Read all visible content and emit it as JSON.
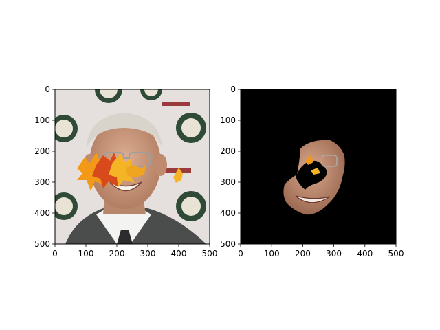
{
  "chart_data": [
    {
      "type": "image",
      "xlim": [
        0,
        500
      ],
      "ylim": [
        500,
        0
      ],
      "xticks": [
        0,
        100,
        200,
        300,
        400,
        500
      ],
      "yticks": [
        0,
        100,
        200,
        300,
        400,
        500
      ],
      "xtick_labels": [
        "0",
        "100",
        "200",
        "300",
        "400",
        "500"
      ],
      "ytick_labels": [
        "0",
        "100",
        "200",
        "300",
        "400",
        "500"
      ],
      "content": "photo-with-leaf-overlay",
      "grid": false
    },
    {
      "type": "image",
      "xlim": [
        0,
        500
      ],
      "ylim": [
        500,
        0
      ],
      "xticks": [
        0,
        100,
        200,
        300,
        400,
        500
      ],
      "yticks": [
        0,
        100,
        200,
        300,
        400,
        500
      ],
      "xtick_labels": [
        "0",
        "100",
        "200",
        "300",
        "400",
        "500"
      ],
      "ytick_labels": [
        "0",
        "100",
        "200",
        "300",
        "400",
        "500"
      ],
      "content": "face-mask-on-black",
      "background": "#000000",
      "grid": false
    }
  ],
  "colors": {
    "backdrop": "#e7e2e0",
    "suit": "#4b4d4c",
    "skin": "#c89a80",
    "hair": "#d9d5cc",
    "leaf_orange": "#f29a17",
    "leaf_red": "#d84a1c",
    "mask_bg": "#000000"
  }
}
